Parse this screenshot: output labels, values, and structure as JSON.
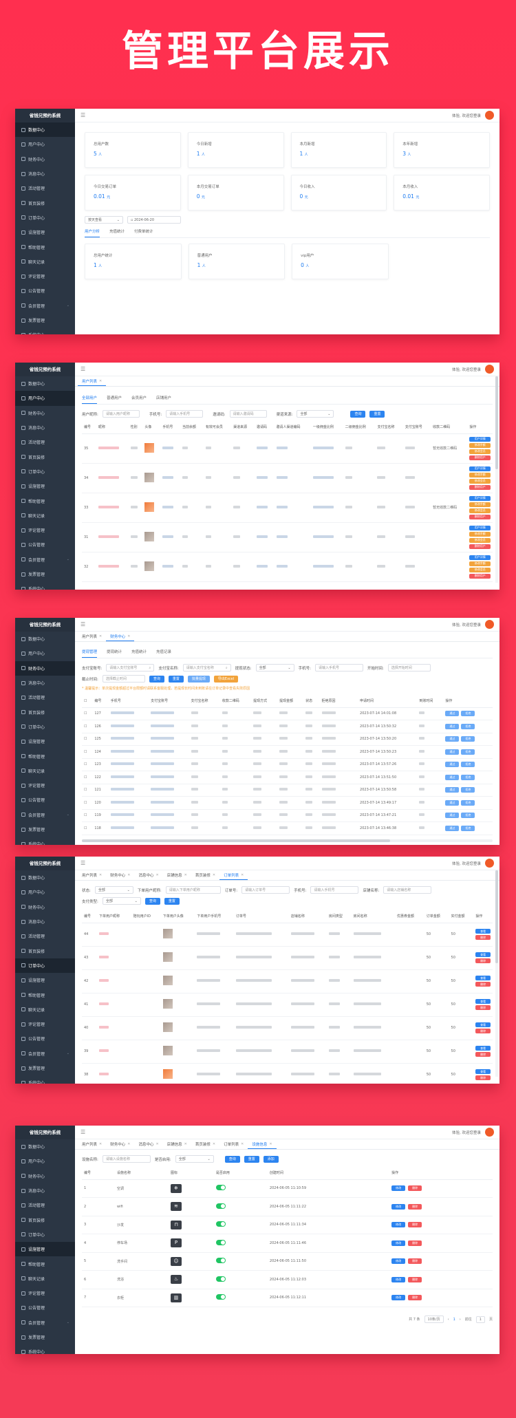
{
  "hero_title": "管理平台展示",
  "app_title": "省钱兄预约系统",
  "welcome": "体验, 欢迎您登录",
  "menu": [
    "数据中心",
    "用户中心",
    "财务中心",
    "消息中心",
    "活动管理",
    "首页装修",
    "订单中心",
    "设施管理",
    "帮助管理",
    "聊天记录",
    "评论管理",
    "公告管理",
    "会员管理",
    "发票管理",
    "系统中心"
  ],
  "dash": {
    "stats_row1": [
      {
        "label": "总用户数",
        "value": "5",
        "unit": "人"
      },
      {
        "label": "今日新增",
        "value": "1",
        "unit": "人"
      },
      {
        "label": "本月新增",
        "value": "1",
        "unit": "人"
      },
      {
        "label": "本年新增",
        "value": "3",
        "unit": "人"
      }
    ],
    "stats_row2": [
      {
        "label": "今日交易订单",
        "value": "0.01",
        "unit": "元"
      },
      {
        "label": "本月交易订单",
        "value": "0",
        "unit": "元"
      },
      {
        "label": "今日收入",
        "value": "0",
        "unit": "元"
      },
      {
        "label": "本月收入",
        "value": "0.01",
        "unit": "元"
      }
    ],
    "range_select": "按天查看",
    "date_value": "2024-06-20",
    "subtabs": [
      "用户分析",
      "充值统计",
      "付费单统计"
    ],
    "stats_row3": [
      {
        "label": "总用户统计",
        "value": "1",
        "unit": "人"
      },
      {
        "label": "普通用户",
        "value": "1",
        "unit": "人"
      },
      {
        "label": "vip用户",
        "value": "0",
        "unit": "人"
      }
    ]
  },
  "users": {
    "tab": "用户列表",
    "subtabs": [
      "全部用户",
      "普通用户",
      "会员用户",
      "店铺用户"
    ],
    "f_phone_label": "用户昵称:",
    "f_phone_ph": "请输入用户昵称",
    "f_mobile_label": "手机号:",
    "f_mobile_ph": "请输入手机号",
    "f_invite_label": "邀请码:",
    "f_invite_ph": "请输入邀请码",
    "f_source_label": "渠道来源:",
    "f_source_val": "全部",
    "btn_search": "查询",
    "btn_reset": "重置",
    "columns": [
      "编号",
      "昵称",
      "性别",
      "头像",
      "手机号",
      "当前余额",
      "有效可会员",
      "渠道来源",
      "邀请码",
      "邀请人渠道编码",
      "一级佣金比例",
      "二级佣金比例",
      "支付宝名称",
      "支付宝账号",
      "收款二维码",
      "操作"
    ],
    "ids": [
      "35",
      "34",
      "33",
      "31",
      "32"
    ],
    "qr_text": "暂无收款二维码",
    "op_detail": "用户详情",
    "op_edit": "修改余额",
    "op_vip": "修改会员",
    "op_del": "删除用户"
  },
  "finance": {
    "tabs": [
      "用户列表",
      "财务中心"
    ],
    "subtabs": [
      "提现管理",
      "提现统计",
      "充值统计",
      "充值记录"
    ],
    "f1_label": "支付宝账号:",
    "f1_ph": "请输入支付宝账号",
    "f2_label": "支付宝名称:",
    "f2_ph": "请输入支付宝名称",
    "f3_label": "提现状态:",
    "f3_val": "全部",
    "f4_label": "手机号:",
    "f4_ph": "请输入手机号",
    "f5_label": "开始时间:",
    "f5_ph": "选择开始时间",
    "f6_label": "截止时间:",
    "f6_ph": "选择截止时间",
    "btn_search": "查询",
    "btn_reset": "重置",
    "btn_batch": "批量提现",
    "btn_export": "导出Excel",
    "notice": "* 温馨提示：单次提现金额超过平台限额时请联系客服处理，若提现长时间未到账请在订单记录中查看失败原因",
    "columns": [
      "编号",
      "手机号",
      "支付宝账号",
      "支付宝名称",
      "收款二维码",
      "提现方式",
      "提现金额",
      "状态",
      "拒绝原因",
      "",
      "",
      "申请时间",
      "到账时间",
      "操作"
    ],
    "rows": [
      {
        "id": "127",
        "time": "2023-07-14 14:01:08"
      },
      {
        "id": "126",
        "time": "2023-07-14 13:50:32"
      },
      {
        "id": "125",
        "time": "2023-07-14 13:50:20"
      },
      {
        "id": "124",
        "time": "2023-07-14 13:50:23"
      },
      {
        "id": "123",
        "time": "2023-07-14 13:57:26"
      },
      {
        "id": "122",
        "time": "2023-07-14 13:51:50"
      },
      {
        "id": "121",
        "time": "2023-07-14 13:50:58"
      },
      {
        "id": "120",
        "time": "2023-07-14 13:49:17"
      },
      {
        "id": "119",
        "time": "2023-07-14 13:47:21"
      },
      {
        "id": "118",
        "time": "2023-07-14 13:46:38"
      }
    ],
    "op_pass": "通过",
    "op_reject": "拒绝"
  },
  "orders": {
    "tabs": [
      "用户列表",
      "财务中心",
      "消息中心",
      "店铺信息",
      "首页装修",
      "订单列表"
    ],
    "f_status_label": "状态:",
    "f_status_val": "全部",
    "f_nick_label": "下单用户昵称:",
    "f_nick_ph": "请输入下单用户昵称",
    "f_order_label": "订单号:",
    "f_order_ph": "请输入订单号",
    "f_mobile_label": "手机号:",
    "f_mobile_ph": "请输入手机号",
    "f_store_label": "店铺名称:",
    "f_store_ph": "请输入店铺名称",
    "f_pay_label": "支付类型:",
    "f_pay_val": "全部",
    "btn_search": "查询",
    "btn_reset": "重置",
    "columns": [
      "编号",
      "下单用户昵称",
      "陪玩用户ID",
      "下单用户头像",
      "下单用户手机号",
      "订单号",
      "店铺名称",
      "房间类型",
      "房间名称",
      "优惠券金额",
      "订单金额",
      "实付金额",
      "操作"
    ],
    "ids": [
      "44",
      "43",
      "42",
      "41",
      "40",
      "39",
      "38"
    ],
    "amount": "50",
    "op_view": "查看",
    "op_del": "删除"
  },
  "facility": {
    "tabs": [
      "用户列表",
      "财务中心",
      "消息中心",
      "店铺信息",
      "首页装修",
      "订单列表",
      "设施信息"
    ],
    "f_name_label": "设施名称:",
    "f_name_ph": "请输入设施名称",
    "f_enable_label": "是否启用:",
    "f_enable_val": "全部",
    "btn_search": "查询",
    "btn_reset": "重置",
    "btn_add": "添加",
    "columns": [
      "编号",
      "设施名称",
      "图标",
      "是否启用",
      "创建时间",
      "操作"
    ],
    "rows": [
      {
        "id": "1",
        "name": "空调",
        "icon": "❄",
        "time": "2024-06-05 11:10:59"
      },
      {
        "id": "2",
        "name": "wifi",
        "icon": "≋",
        "time": "2024-06-05 11:11:22"
      },
      {
        "id": "3",
        "name": "沙发",
        "icon": "⊓",
        "time": "2024-06-05 11:11:34"
      },
      {
        "id": "4",
        "name": "停车场",
        "icon": "P",
        "time": "2024-06-05 11:11:46"
      },
      {
        "id": "5",
        "name": "洗手间",
        "icon": "☺",
        "time": "2024-06-05 11:11:50"
      },
      {
        "id": "6",
        "name": "洗浴",
        "icon": "♨",
        "time": "2024-06-05 11:12:03"
      },
      {
        "id": "7",
        "name": "衣柜",
        "icon": "▥",
        "time": "2024-06-05 11:12:11"
      }
    ],
    "op_edit": "修改",
    "op_del": "删除",
    "pager_total": "共 7 条",
    "pager_size": "10条/页",
    "pager_page": "1",
    "pager_goto": "前往",
    "pager_goto_page": "1",
    "pager_unit": "页"
  }
}
